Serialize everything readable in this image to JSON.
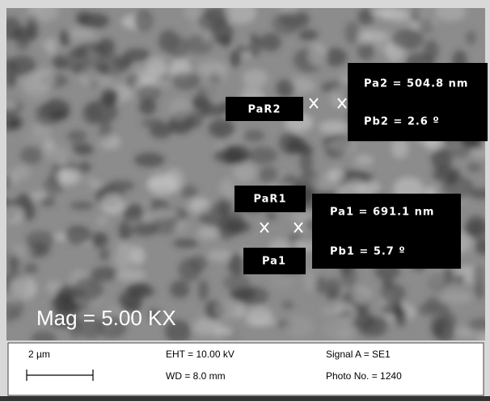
{
  "annotations": {
    "par2": "PaR2",
    "pa2": "Pa2 = 504.8 nm",
    "pb2": "Pb2 = 2.6 º",
    "par1": "PaR1",
    "pa1_label": "Pa1",
    "pa1": "Pa1 = 691.1 nm",
    "pb1": "Pb1 = 5.7 º",
    "mag": "Mag = 5.00 KX"
  },
  "info_bar": {
    "scale": "2 µm",
    "eht": "EHT = 10.00 kV",
    "wd": "WD = 8.0 mm",
    "signal": "Signal A = SE1",
    "photo": "Photo No. = 1240"
  }
}
